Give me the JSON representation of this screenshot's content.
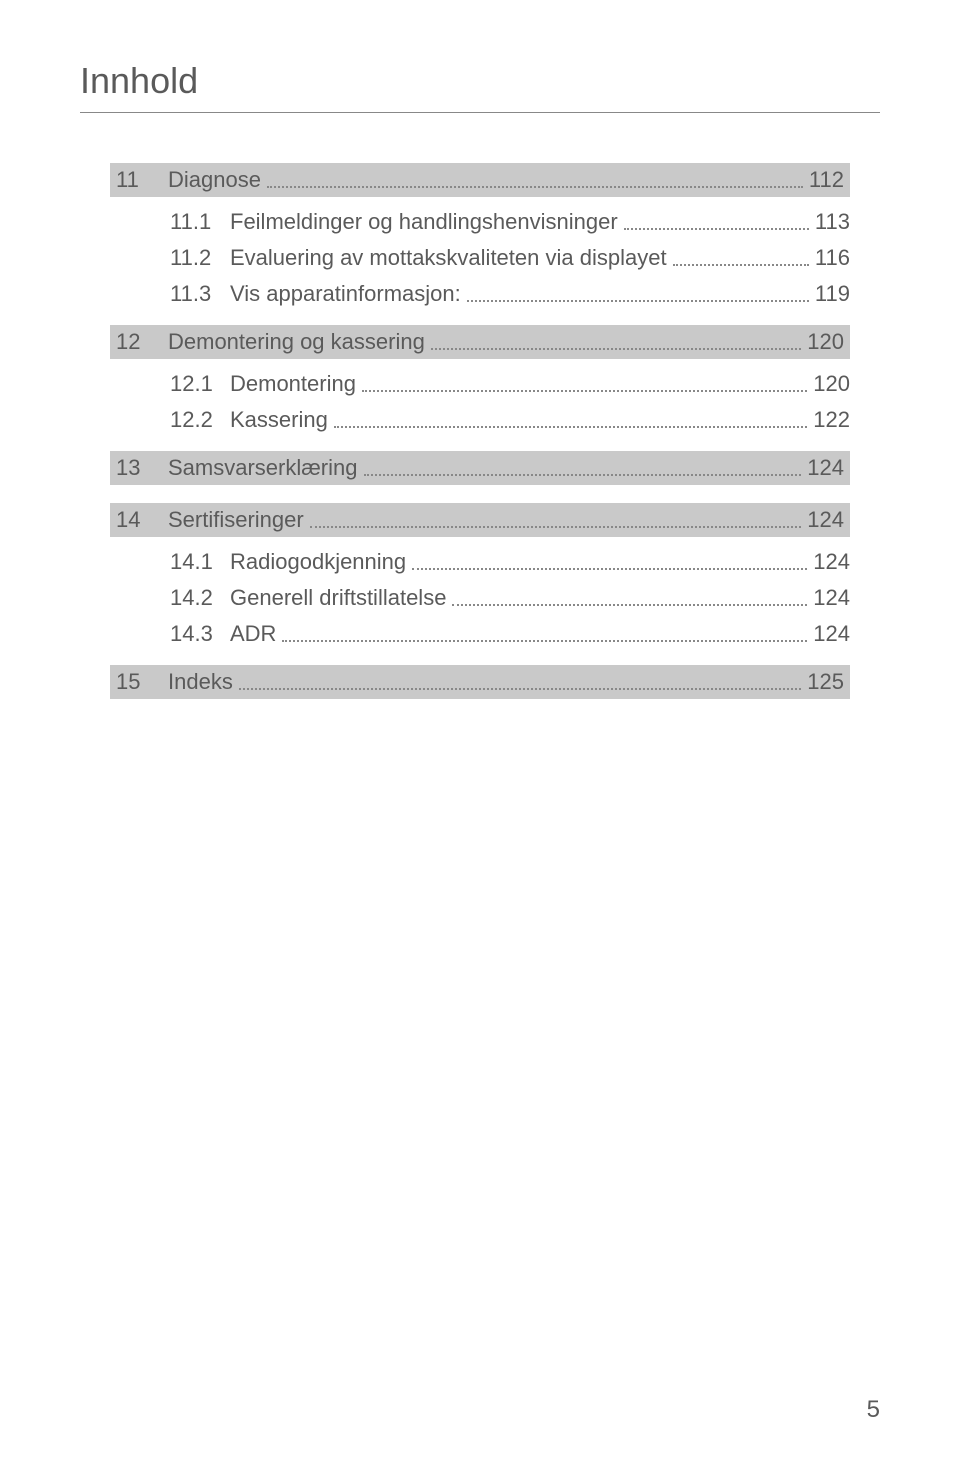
{
  "title": "Innhold",
  "page_number": "5",
  "colors": {
    "text": "#5a5a5a",
    "section_bg": "#c9c9c9",
    "divider": "#888888",
    "page_bg": "#ffffff"
  },
  "typography": {
    "title_fontsize": 36,
    "row_fontsize": 22,
    "footer_fontsize": 24,
    "font_family": "Arial"
  },
  "toc": [
    {
      "type": "section",
      "num": "11",
      "label": "Diagnose",
      "page": "112"
    },
    {
      "type": "sub",
      "num": "11.1",
      "label": "Feilmeldinger og handlingshenvisninger",
      "page": "113"
    },
    {
      "type": "sub",
      "num": "11.2",
      "label": "Evaluering av mottakskvaliteten via displayet",
      "page": "116"
    },
    {
      "type": "sub",
      "num": "11.3",
      "label": "Vis apparatinformasjon:",
      "page": "119"
    },
    {
      "type": "section",
      "num": "12",
      "label": "Demontering og kassering",
      "page": "120"
    },
    {
      "type": "sub",
      "num": "12.1",
      "label": "Demontering",
      "page": "120"
    },
    {
      "type": "sub",
      "num": "12.2",
      "label": "Kassering",
      "page": "122"
    },
    {
      "type": "section",
      "num": "13",
      "label": "Samsvarserklæring",
      "page": "124"
    },
    {
      "type": "section",
      "num": "14",
      "label": "Sertifiseringer",
      "page": "124"
    },
    {
      "type": "sub",
      "num": "14.1",
      "label": "Radiogodkjenning",
      "page": "124"
    },
    {
      "type": "sub",
      "num": "14.2",
      "label": "Generell driftstillatelse",
      "page": "124"
    },
    {
      "type": "sub",
      "num": "14.3",
      "label": "ADR",
      "page": "124"
    },
    {
      "type": "section",
      "num": "15",
      "label": "Indeks",
      "page": "125"
    }
  ]
}
